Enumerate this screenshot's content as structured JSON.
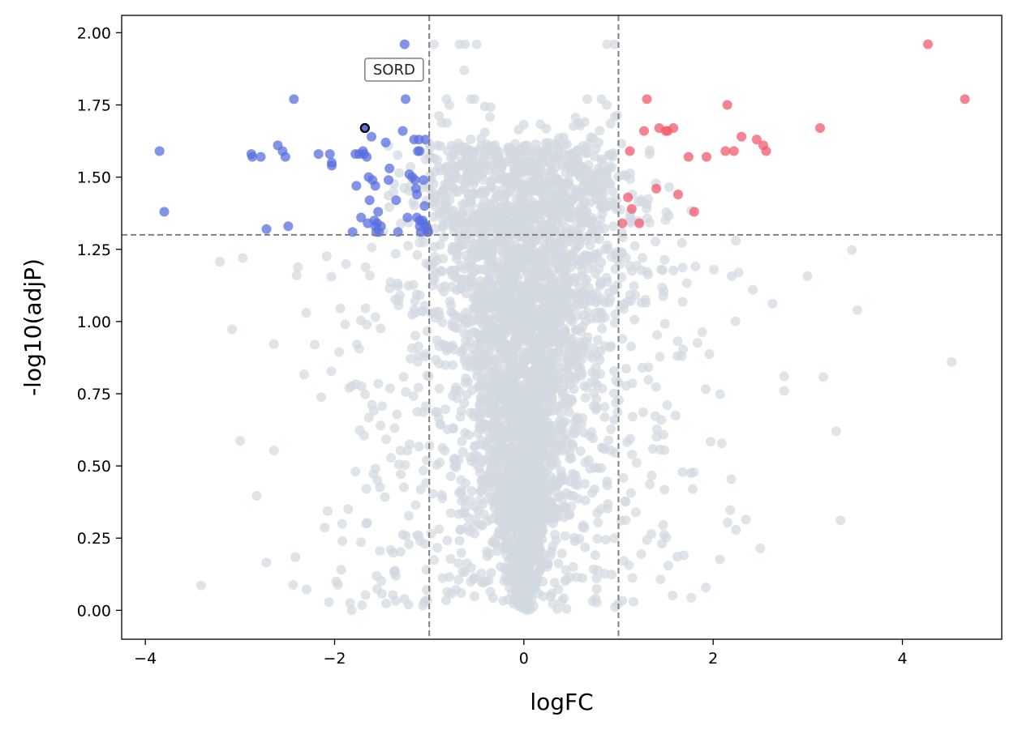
{
  "chart_data": {
    "type": "scatter",
    "title": "",
    "xlabel": "logFC",
    "ylabel": "-log10(adjP)",
    "xlim": [
      -4.25,
      5.05
    ],
    "ylim": [
      -0.1,
      2.06
    ],
    "xticks": [
      -4,
      -2,
      0,
      2,
      4
    ],
    "xtick_labels": [
      "−4",
      "−2",
      "0",
      "2",
      "4"
    ],
    "yticks": [
      0.0,
      0.25,
      0.5,
      0.75,
      1.0,
      1.25,
      1.5,
      1.75,
      2.0
    ],
    "ytick_labels": [
      "0.00",
      "0.25",
      "0.50",
      "0.75",
      "1.00",
      "1.25",
      "1.50",
      "1.75",
      "2.00"
    ],
    "thresholds": {
      "logfc": [
        -1,
        1
      ],
      "neg_log10_adjp": 1.3
    },
    "colors": {
      "down": "#5a6fe0",
      "up": "#f25a6c",
      "ns": "#d1d9e0",
      "threshold": "#808080",
      "highlight_edge": "#000000"
    },
    "annotation": {
      "text": "SORD",
      "x": -1.68,
      "y": 1.67
    },
    "series": [
      {
        "name": "down",
        "points": [
          [
            -3.85,
            1.59
          ],
          [
            -3.8,
            1.38
          ],
          [
            -2.88,
            1.58
          ],
          [
            -2.87,
            1.57
          ],
          [
            -2.78,
            1.57
          ],
          [
            -2.72,
            1.32
          ],
          [
            -2.6,
            1.61
          ],
          [
            -2.55,
            1.59
          ],
          [
            -2.52,
            1.57
          ],
          [
            -2.49,
            1.33
          ],
          [
            -2.43,
            1.77
          ],
          [
            -2.17,
            1.58
          ],
          [
            -2.05,
            1.58
          ],
          [
            -2.03,
            1.55
          ],
          [
            -2.03,
            1.54
          ],
          [
            -1.81,
            1.31
          ],
          [
            -1.78,
            1.58
          ],
          [
            -1.77,
            1.47
          ],
          [
            -1.74,
            1.58
          ],
          [
            -1.72,
            1.36
          ],
          [
            -1.7,
            1.59
          ],
          [
            -1.69,
            1.58
          ],
          [
            -1.68,
            1.67
          ],
          [
            -1.66,
            1.57
          ],
          [
            -1.65,
            1.34
          ],
          [
            -1.64,
            1.5
          ],
          [
            -1.63,
            1.42
          ],
          [
            -1.61,
            1.64
          ],
          [
            -1.6,
            1.49
          ],
          [
            -1.58,
            1.35
          ],
          [
            -1.57,
            1.33
          ],
          [
            -1.57,
            1.47
          ],
          [
            -1.56,
            1.31
          ],
          [
            -1.55,
            1.34
          ],
          [
            -1.54,
            1.38
          ],
          [
            -1.53,
            1.31
          ],
          [
            -1.51,
            1.33
          ],
          [
            -1.46,
            1.62
          ],
          [
            -1.43,
            1.49
          ],
          [
            -1.42,
            1.53
          ],
          [
            -1.35,
            1.42
          ],
          [
            -1.33,
            1.31
          ],
          [
            -1.28,
            1.66
          ],
          [
            -1.26,
            1.96
          ],
          [
            -1.25,
            1.77
          ],
          [
            -1.23,
            1.36
          ],
          [
            -1.21,
            1.51
          ],
          [
            -1.18,
            1.5
          ],
          [
            -1.16,
            1.63
          ],
          [
            -1.15,
            1.49
          ],
          [
            -1.14,
            1.46
          ],
          [
            -1.13,
            1.44
          ],
          [
            -1.13,
            1.36
          ],
          [
            -1.12,
            1.59
          ],
          [
            -1.11,
            1.63
          ],
          [
            -1.1,
            1.59
          ],
          [
            -1.1,
            1.33
          ],
          [
            -1.09,
            1.31
          ],
          [
            -1.07,
            1.35
          ],
          [
            -1.06,
            1.34
          ],
          [
            -1.06,
            1.49
          ],
          [
            -1.05,
            1.4
          ],
          [
            -1.04,
            1.63
          ],
          [
            -1.03,
            1.33
          ],
          [
            -1.02,
            1.31
          ],
          [
            -1.01,
            1.31
          ],
          [
            -1.1,
            1.35
          ],
          [
            -1.02,
            1.32
          ]
        ]
      },
      {
        "name": "up",
        "points": [
          [
            1.04,
            1.34
          ],
          [
            1.1,
            1.43
          ],
          [
            1.12,
            1.59
          ],
          [
            1.14,
            1.39
          ],
          [
            1.22,
            1.34
          ],
          [
            1.27,
            1.66
          ],
          [
            1.3,
            1.77
          ],
          [
            1.4,
            1.46
          ],
          [
            1.43,
            1.67
          ],
          [
            1.5,
            1.66
          ],
          [
            1.52,
            1.66
          ],
          [
            1.58,
            1.67
          ],
          [
            1.63,
            1.44
          ],
          [
            1.74,
            1.57
          ],
          [
            1.8,
            1.38
          ],
          [
            1.93,
            1.57
          ],
          [
            2.13,
            1.59
          ],
          [
            2.15,
            1.75
          ],
          [
            2.22,
            1.59
          ],
          [
            2.3,
            1.64
          ],
          [
            2.46,
            1.63
          ],
          [
            2.53,
            1.61
          ],
          [
            2.56,
            1.59
          ],
          [
            3.13,
            1.67
          ],
          [
            4.27,
            1.96
          ],
          [
            4.66,
            1.77
          ]
        ]
      }
    ],
    "highlight_point": [
      -1.68,
      1.67
    ]
  }
}
